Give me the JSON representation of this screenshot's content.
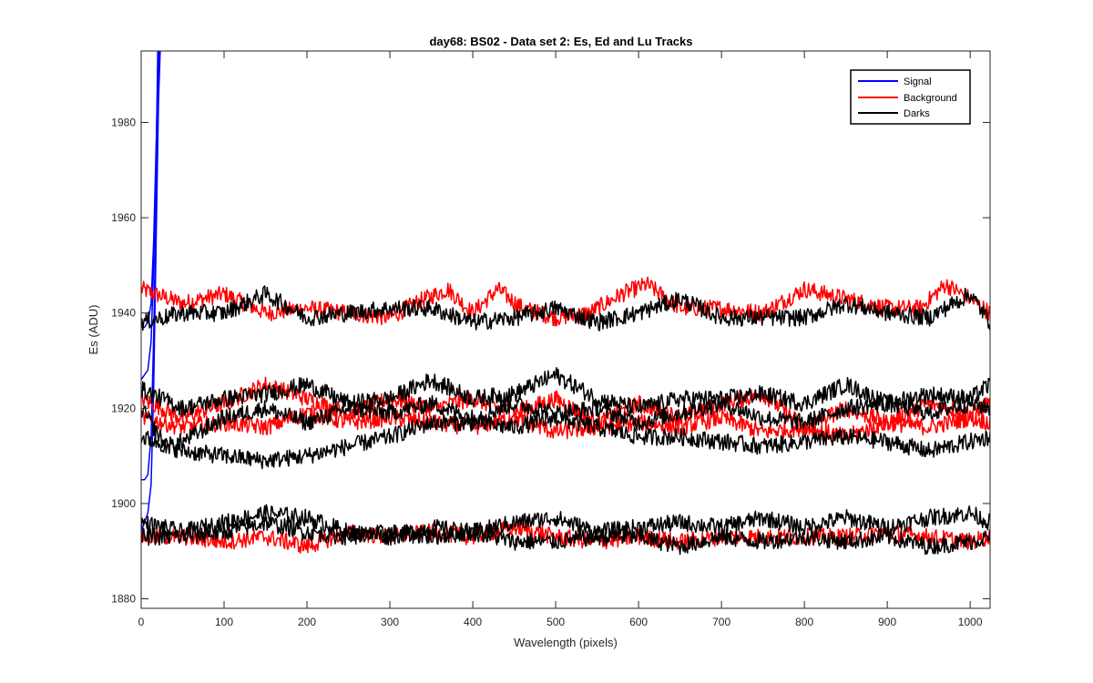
{
  "chart_data": {
    "type": "line",
    "title": "day68: BS02 - Data set 2: Es, Ed and Lu Tracks",
    "xlabel": "Wavelength (pixels)",
    "ylabel": "Es (ADU)",
    "xlim": [
      0,
      1024
    ],
    "ylim": [
      1878,
      1995
    ],
    "xticks": [
      0,
      100,
      200,
      300,
      400,
      500,
      600,
      700,
      800,
      900,
      1000
    ],
    "yticks": [
      1880,
      1900,
      1920,
      1940,
      1960,
      1980
    ],
    "grid": false,
    "legend": {
      "position": "top-right",
      "entries": [
        {
          "label": "Signal",
          "color": "#0000ff"
        },
        {
          "label": "Background",
          "color": "#ff0000"
        },
        {
          "label": "Darks",
          "color": "#000000"
        }
      ]
    },
    "series": [
      {
        "name": "Signal",
        "color": "#0000ff",
        "points": [
          [
            0,
            1937
          ],
          [
            4,
            1937
          ],
          [
            8,
            1938
          ],
          [
            12,
            1942
          ],
          [
            15,
            1955
          ],
          [
            18,
            1975
          ],
          [
            21,
            1995
          ]
        ]
      },
      {
        "name": "Signal",
        "color": "#0000ff",
        "points": [
          [
            0,
            1926
          ],
          [
            4,
            1927
          ],
          [
            8,
            1928
          ],
          [
            12,
            1934
          ],
          [
            15,
            1950
          ],
          [
            18,
            1972
          ],
          [
            20,
            1995
          ]
        ]
      },
      {
        "name": "Signal",
        "color": "#0000ff",
        "points": [
          [
            0,
            1905
          ],
          [
            4,
            1905
          ],
          [
            8,
            1906
          ],
          [
            12,
            1914
          ],
          [
            15,
            1935
          ],
          [
            18,
            1962
          ],
          [
            21,
            1990
          ],
          [
            22,
            1995
          ]
        ]
      },
      {
        "name": "Signal",
        "color": "#0000ff",
        "points": [
          [
            0,
            1894
          ],
          [
            4,
            1896
          ],
          [
            8,
            1898
          ],
          [
            12,
            1904
          ],
          [
            15,
            1924
          ],
          [
            18,
            1955
          ],
          [
            21,
            1985
          ],
          [
            23,
            1995
          ]
        ]
      },
      {
        "name": "Background",
        "color": "#ff0000",
        "points": [
          [
            0,
            1945
          ],
          [
            50,
            1942
          ],
          [
            100,
            1944
          ],
          [
            150,
            1940
          ],
          [
            200,
            1941
          ],
          [
            250,
            1940
          ],
          [
            300,
            1939
          ],
          [
            330,
            1942
          ],
          [
            370,
            1945
          ],
          [
            400,
            1940
          ],
          [
            430,
            1945
          ],
          [
            460,
            1941
          ],
          [
            500,
            1939
          ],
          [
            540,
            1940
          ],
          [
            580,
            1944
          ],
          [
            610,
            1946
          ],
          [
            650,
            1941
          ],
          [
            700,
            1941
          ],
          [
            750,
            1940
          ],
          [
            800,
            1945
          ],
          [
            850,
            1943
          ],
          [
            900,
            1941
          ],
          [
            940,
            1941
          ],
          [
            970,
            1946
          ],
          [
            1000,
            1943
          ],
          [
            1024,
            1940
          ]
        ]
      },
      {
        "name": "Background",
        "color": "#ff0000",
        "points": [
          [
            0,
            1922
          ],
          [
            50,
            1918
          ],
          [
            100,
            1921
          ],
          [
            150,
            1925
          ],
          [
            200,
            1922
          ],
          [
            250,
            1919
          ],
          [
            300,
            1922
          ],
          [
            350,
            1920
          ],
          [
            400,
            1922
          ],
          [
            450,
            1919
          ],
          [
            500,
            1922
          ],
          [
            550,
            1917
          ],
          [
            600,
            1921
          ],
          [
            650,
            1918
          ],
          [
            700,
            1921
          ],
          [
            750,
            1923
          ],
          [
            800,
            1916
          ],
          [
            850,
            1920
          ],
          [
            900,
            1917
          ],
          [
            950,
            1921
          ],
          [
            1000,
            1919
          ],
          [
            1024,
            1921
          ]
        ]
      },
      {
        "name": "Background",
        "color": "#ff0000",
        "points": [
          [
            0,
            1918
          ],
          [
            50,
            1916
          ],
          [
            100,
            1917
          ],
          [
            150,
            1916
          ],
          [
            200,
            1919
          ],
          [
            250,
            1917
          ],
          [
            300,
            1918
          ],
          [
            350,
            1917
          ],
          [
            400,
            1916
          ],
          [
            450,
            1918
          ],
          [
            500,
            1915
          ],
          [
            550,
            1916
          ],
          [
            600,
            1917
          ],
          [
            650,
            1916
          ],
          [
            700,
            1918
          ],
          [
            750,
            1915
          ],
          [
            800,
            1916
          ],
          [
            850,
            1914
          ],
          [
            900,
            1917
          ],
          [
            950,
            1916
          ],
          [
            1000,
            1918
          ],
          [
            1024,
            1917
          ]
        ]
      },
      {
        "name": "Background",
        "color": "#ff0000",
        "points": [
          [
            0,
            1893
          ],
          [
            50,
            1893
          ],
          [
            100,
            1892
          ],
          [
            150,
            1893
          ],
          [
            200,
            1891
          ],
          [
            250,
            1894
          ],
          [
            300,
            1893
          ],
          [
            350,
            1894
          ],
          [
            400,
            1893
          ],
          [
            450,
            1895
          ],
          [
            500,
            1893
          ],
          [
            550,
            1892
          ],
          [
            600,
            1893
          ],
          [
            650,
            1892
          ],
          [
            700,
            1893
          ],
          [
            750,
            1893
          ],
          [
            800,
            1893
          ],
          [
            850,
            1893
          ],
          [
            900,
            1894
          ],
          [
            950,
            1893
          ],
          [
            1000,
            1892
          ],
          [
            1024,
            1893
          ]
        ]
      },
      {
        "name": "Darks",
        "color": "#000000",
        "points": [
          [
            0,
            1938
          ],
          [
            50,
            1940
          ],
          [
            100,
            1940
          ],
          [
            150,
            1944
          ],
          [
            200,
            1939
          ],
          [
            250,
            1940
          ],
          [
            300,
            1941
          ],
          [
            350,
            1941
          ],
          [
            400,
            1938
          ],
          [
            450,
            1939
          ],
          [
            500,
            1941
          ],
          [
            550,
            1938
          ],
          [
            600,
            1940
          ],
          [
            650,
            1943
          ],
          [
            700,
            1939
          ],
          [
            750,
            1939
          ],
          [
            800,
            1939
          ],
          [
            850,
            1942
          ],
          [
            900,
            1940
          ],
          [
            950,
            1939
          ],
          [
            1000,
            1944
          ],
          [
            1024,
            1938
          ]
        ]
      },
      {
        "name": "Darks",
        "color": "#000000",
        "points": [
          [
            0,
            1924
          ],
          [
            50,
            1920
          ],
          [
            100,
            1922
          ],
          [
            150,
            1923
          ],
          [
            200,
            1925
          ],
          [
            250,
            1921
          ],
          [
            300,
            1922
          ],
          [
            350,
            1926
          ],
          [
            400,
            1922
          ],
          [
            450,
            1923
          ],
          [
            500,
            1927
          ],
          [
            550,
            1922
          ],
          [
            600,
            1920
          ],
          [
            650,
            1922
          ],
          [
            700,
            1922
          ],
          [
            750,
            1923
          ],
          [
            800,
            1921
          ],
          [
            850,
            1925
          ],
          [
            900,
            1921
          ],
          [
            950,
            1923
          ],
          [
            1000,
            1922
          ],
          [
            1024,
            1925
          ]
        ]
      },
      {
        "name": "Darks",
        "color": "#000000",
        "points": [
          [
            0,
            1920
          ],
          [
            30,
            1912
          ],
          [
            50,
            1913
          ],
          [
            100,
            1918
          ],
          [
            150,
            1920
          ],
          [
            200,
            1917
          ],
          [
            250,
            1920
          ],
          [
            300,
            1919
          ],
          [
            350,
            1921
          ],
          [
            400,
            1918
          ],
          [
            450,
            1921
          ],
          [
            500,
            1919
          ],
          [
            550,
            1920
          ],
          [
            600,
            1917
          ],
          [
            650,
            1919
          ],
          [
            700,
            1921
          ],
          [
            750,
            1918
          ],
          [
            800,
            1917
          ],
          [
            850,
            1920
          ],
          [
            900,
            1921
          ],
          [
            950,
            1919
          ],
          [
            1000,
            1921
          ],
          [
            1024,
            1920
          ]
        ]
      },
      {
        "name": "Darks",
        "color": "#000000",
        "points": [
          [
            0,
            1914
          ],
          [
            50,
            1911
          ],
          [
            100,
            1910
          ],
          [
            150,
            1909
          ],
          [
            200,
            1910
          ],
          [
            250,
            1912
          ],
          [
            300,
            1914
          ],
          [
            350,
            1917
          ],
          [
            400,
            1917
          ],
          [
            450,
            1916
          ],
          [
            500,
            1918
          ],
          [
            550,
            1916
          ],
          [
            600,
            1914
          ],
          [
            650,
            1914
          ],
          [
            700,
            1913
          ],
          [
            750,
            1912
          ],
          [
            800,
            1913
          ],
          [
            850,
            1914
          ],
          [
            900,
            1913
          ],
          [
            950,
            1911
          ],
          [
            1000,
            1913
          ],
          [
            1024,
            1914
          ]
        ]
      },
      {
        "name": "Darks",
        "color": "#000000",
        "points": [
          [
            0,
            1896
          ],
          [
            50,
            1894
          ],
          [
            100,
            1896
          ],
          [
            150,
            1898
          ],
          [
            200,
            1897
          ],
          [
            250,
            1894
          ],
          [
            300,
            1893
          ],
          [
            350,
            1895
          ],
          [
            400,
            1894
          ],
          [
            450,
            1896
          ],
          [
            500,
            1897
          ],
          [
            550,
            1894
          ],
          [
            600,
            1895
          ],
          [
            650,
            1896
          ],
          [
            700,
            1895
          ],
          [
            750,
            1897
          ],
          [
            800,
            1895
          ],
          [
            850,
            1897
          ],
          [
            900,
            1895
          ],
          [
            950,
            1897
          ],
          [
            1000,
            1898
          ],
          [
            1024,
            1896
          ]
        ]
      },
      {
        "name": "Darks",
        "color": "#000000",
        "points": [
          [
            0,
            1893
          ],
          [
            50,
            1893
          ],
          [
            100,
            1894
          ],
          [
            150,
            1896
          ],
          [
            200,
            1894
          ],
          [
            250,
            1893
          ],
          [
            300,
            1894
          ],
          [
            350,
            1893
          ],
          [
            400,
            1894
          ],
          [
            450,
            1892
          ],
          [
            500,
            1892
          ],
          [
            550,
            1893
          ],
          [
            600,
            1893
          ],
          [
            650,
            1891
          ],
          [
            700,
            1893
          ],
          [
            750,
            1892
          ],
          [
            800,
            1893
          ],
          [
            850,
            1892
          ],
          [
            900,
            1893
          ],
          [
            950,
            1891
          ],
          [
            1000,
            1892
          ],
          [
            1024,
            1893
          ]
        ]
      }
    ]
  }
}
